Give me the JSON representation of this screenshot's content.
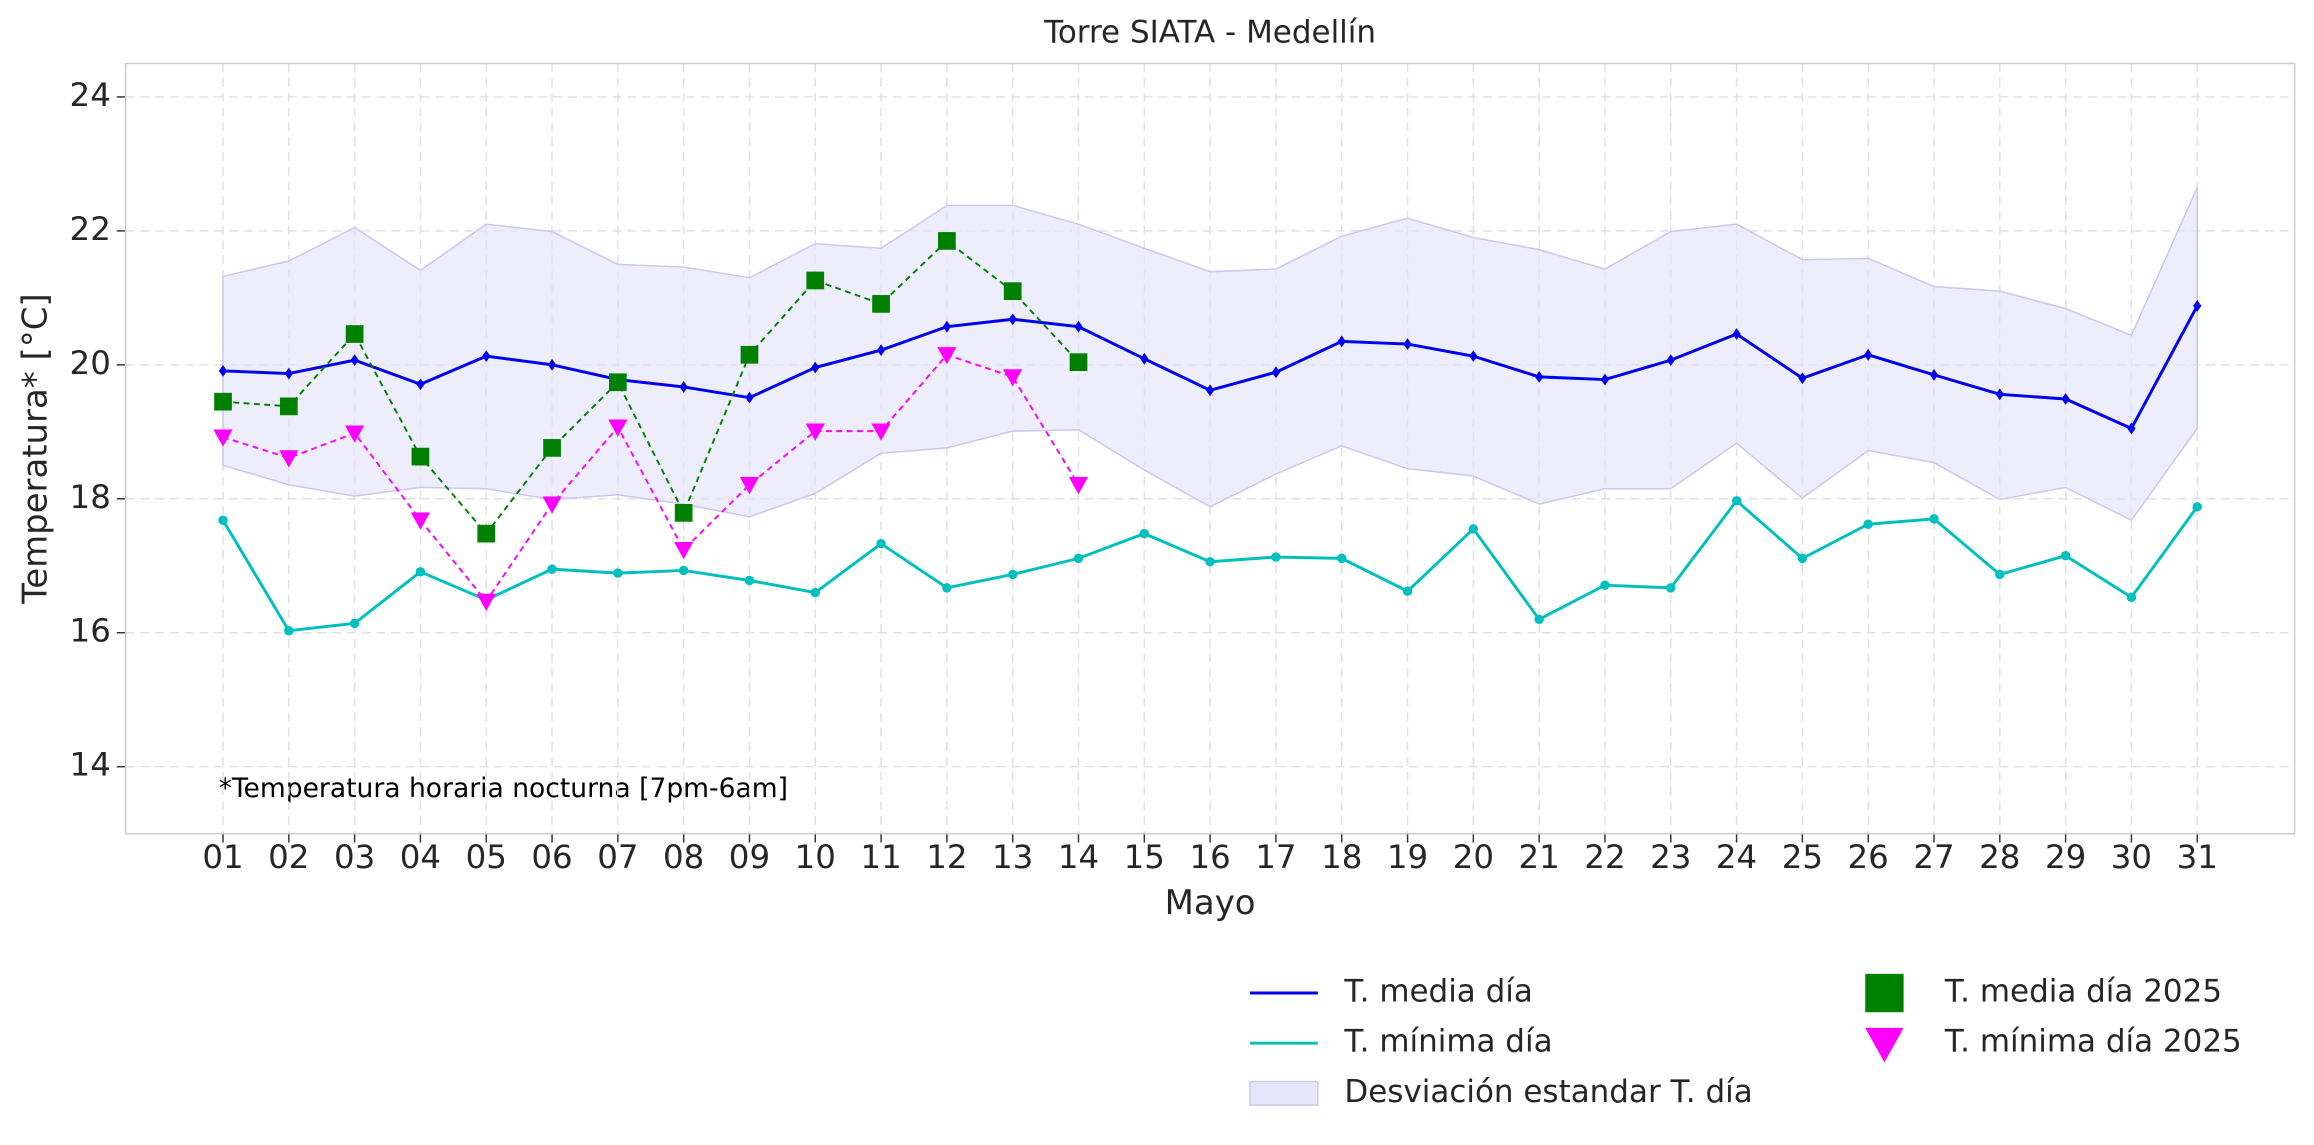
{
  "chart_data": {
    "type": "line",
    "title": "Torre SIATA - Medellín",
    "xlabel": "Mayo",
    "ylabel": "Temperatura* [°C]",
    "annotation": "*Temperatura horaria nocturna [7pm-6am]",
    "categories": [
      "01",
      "02",
      "03",
      "04",
      "05",
      "06",
      "07",
      "08",
      "09",
      "10",
      "11",
      "12",
      "13",
      "14",
      "15",
      "16",
      "17",
      "18",
      "19",
      "20",
      "21",
      "22",
      "23",
      "24",
      "25",
      "26",
      "27",
      "28",
      "29",
      "30",
      "31"
    ],
    "ylim": [
      13,
      24.5
    ],
    "yticks": [
      14,
      16,
      18,
      20,
      22,
      24
    ],
    "grid": true,
    "legend": "lower right",
    "band": {
      "name": "Desviación estandar T. día",
      "color": "#e6e6fa",
      "upper": [
        21.32,
        21.55,
        22.05,
        21.41,
        22.1,
        21.99,
        21.5,
        21.46,
        21.3,
        21.81,
        21.74,
        22.38,
        22.38,
        22.1,
        21.74,
        21.39,
        21.43,
        21.92,
        22.19,
        21.9,
        21.72,
        21.43,
        21.99,
        22.1,
        21.57,
        21.59,
        21.17,
        21.1,
        20.84,
        20.44,
        22.65
      ],
      "lower": [
        18.5,
        18.21,
        18.04,
        18.17,
        18.15,
        17.99,
        18.06,
        17.92,
        17.73,
        18.08,
        18.68,
        18.76,
        19.01,
        19.03,
        18.43,
        17.88,
        18.37,
        18.79,
        18.45,
        18.34,
        17.92,
        18.15,
        18.15,
        18.83,
        18.01,
        18.72,
        18.54,
        17.99,
        18.17,
        17.68,
        19.05
      ]
    },
    "series": [
      {
        "name": "T. media día",
        "color": "#0000ee",
        "marker": "diamond",
        "linestyle": "solid",
        "values": [
          19.91,
          19.87,
          20.07,
          19.71,
          20.13,
          20.0,
          19.78,
          19.67,
          19.51,
          19.96,
          20.22,
          20.57,
          20.68,
          20.57,
          20.09,
          19.62,
          19.89,
          20.35,
          20.31,
          20.13,
          19.82,
          19.78,
          20.07,
          20.46,
          19.8,
          20.15,
          19.85,
          19.56,
          19.49,
          19.05,
          20.88
        ]
      },
      {
        "name": "T. mínima día",
        "color": "#00bfbf",
        "marker": "circle",
        "linestyle": "solid",
        "values": [
          17.68,
          16.03,
          16.14,
          16.91,
          16.49,
          16.95,
          16.89,
          16.93,
          16.78,
          16.6,
          17.33,
          16.67,
          16.87,
          17.11,
          17.48,
          17.06,
          17.13,
          17.11,
          16.62,
          17.55,
          16.2,
          16.71,
          16.67,
          17.97,
          17.11,
          17.62,
          17.7,
          16.87,
          17.15,
          16.53,
          17.88
        ]
      },
      {
        "name": "T. media día 2025",
        "color": "#008000",
        "marker": "square",
        "linestyle": "dashed",
        "values": [
          19.45,
          19.38,
          20.46,
          18.63,
          17.48,
          18.76,
          19.74,
          17.79,
          20.15,
          21.26,
          20.91,
          21.85,
          21.1,
          20.04,
          null,
          null,
          null,
          null,
          null,
          null,
          null,
          null,
          null,
          null,
          null,
          null,
          null,
          null,
          null,
          null,
          null
        ]
      },
      {
        "name": "T. mínima día 2025",
        "color": "#ff00ff",
        "marker": "triangle-down",
        "linestyle": "dashed",
        "values": [
          18.92,
          18.61,
          18.98,
          17.68,
          16.47,
          17.92,
          19.07,
          17.24,
          18.21,
          19.01,
          19.01,
          20.15,
          19.82,
          18.21,
          null,
          null,
          null,
          null,
          null,
          null,
          null,
          null,
          null,
          null,
          null,
          null,
          null,
          null,
          null,
          null,
          null
        ]
      }
    ]
  }
}
